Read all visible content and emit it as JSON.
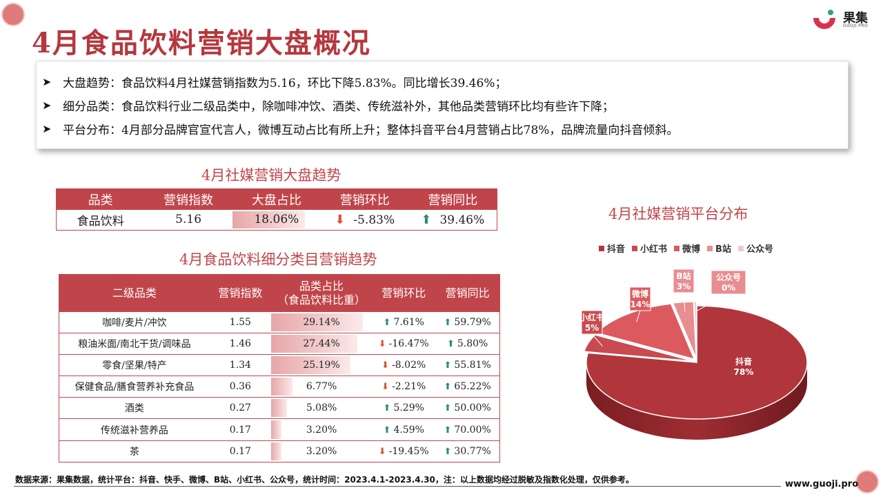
{
  "title": "4月食品饮料营销大盘概况",
  "logo": {
    "name": "果集",
    "url": "GUOJI.PRO"
  },
  "summary": [
    "大盘趋势：食品饮料4月社媒营销指数为5.16，环比下降5.83%。同比增长39.46%；",
    "细分品类：食品饮料行业二级品类中，除咖啡冲饮、酒类、传统滋补外，其他品类营销环比均有些许下降；",
    "平台分布：4月部分品牌官宣代言人，微博互动占比有所上升；整体抖音平台4月营销占比78%，品牌流量向抖音倾斜。"
  ],
  "table1": {
    "title": "4月社媒营销大盘趋势",
    "headers": [
      "品类",
      "营销指数",
      "大盘占比",
      "营销环比",
      "营销同比"
    ],
    "row": {
      "category": "食品饮料",
      "index": "5.16",
      "share": "18.06%",
      "share_value": 18.06,
      "mom": "-5.83%",
      "yoy": "39.46%"
    }
  },
  "table2": {
    "title": "4月食品饮料细分类目营销趋势",
    "headers": [
      "二级品类",
      "营销指数",
      "品类占比",
      "（食品饮料比重）",
      "营销环比",
      "营销同比"
    ],
    "rows": [
      {
        "category": "咖啡/麦片/冲饮",
        "index": "1.55",
        "share": "29.14%",
        "share_value": 29.14,
        "mom": "7.61%",
        "mom_dir": "up",
        "yoy": "59.79%"
      },
      {
        "category": "粮油米面/南北干货/调味品",
        "index": "1.46",
        "share": "27.44%",
        "share_value": 27.44,
        "mom": "-16.47%",
        "mom_dir": "down",
        "yoy": "5.80%"
      },
      {
        "category": "零食/坚果/特产",
        "index": "1.34",
        "share": "25.19%",
        "share_value": 25.19,
        "mom": "-8.02%",
        "mom_dir": "down",
        "yoy": "55.81%"
      },
      {
        "category": "保健食品/膳食营养补充食品",
        "index": "0.36",
        "share": "6.77%",
        "share_value": 6.77,
        "mom": "-2.21%",
        "mom_dir": "down",
        "yoy": "65.22%"
      },
      {
        "category": "酒类",
        "index": "0.27",
        "share": "5.08%",
        "share_value": 5.08,
        "mom": "5.29%",
        "mom_dir": "up",
        "yoy": "50.00%"
      },
      {
        "category": "传统滋补营养品",
        "index": "0.17",
        "share": "3.20%",
        "share_value": 3.2,
        "mom": "4.59%",
        "mom_dir": "up",
        "yoy": "70.00%"
      },
      {
        "category": "茶",
        "index": "0.17",
        "share": "3.20%",
        "share_value": 3.2,
        "mom": "-19.45%",
        "mom_dir": "down",
        "yoy": "30.77%"
      }
    ]
  },
  "chart_data": {
    "type": "pie",
    "title": "4月社媒营销平台分布",
    "legend_position": "top",
    "categories": [
      "抖音",
      "小红书",
      "微博",
      "B站",
      "公众号"
    ],
    "values": [
      78,
      5,
      14,
      3,
      0
    ],
    "labels": [
      "78%",
      "5%",
      "14%",
      "3%",
      "0%"
    ],
    "colors": [
      "#b0363c",
      "#c94a4f",
      "#dc5a5e",
      "#e88d90",
      "#f3c8ca"
    ]
  },
  "footer": {
    "note": "数据来源：果集数据，统计平台：抖音、快手、微博、B站、小红书、公众号，统计时间：2023.4.1-2023.4.30，注：以上数据均经过脱敏及指数化处理，仅供参考。",
    "url": "www.guoji.pro"
  }
}
